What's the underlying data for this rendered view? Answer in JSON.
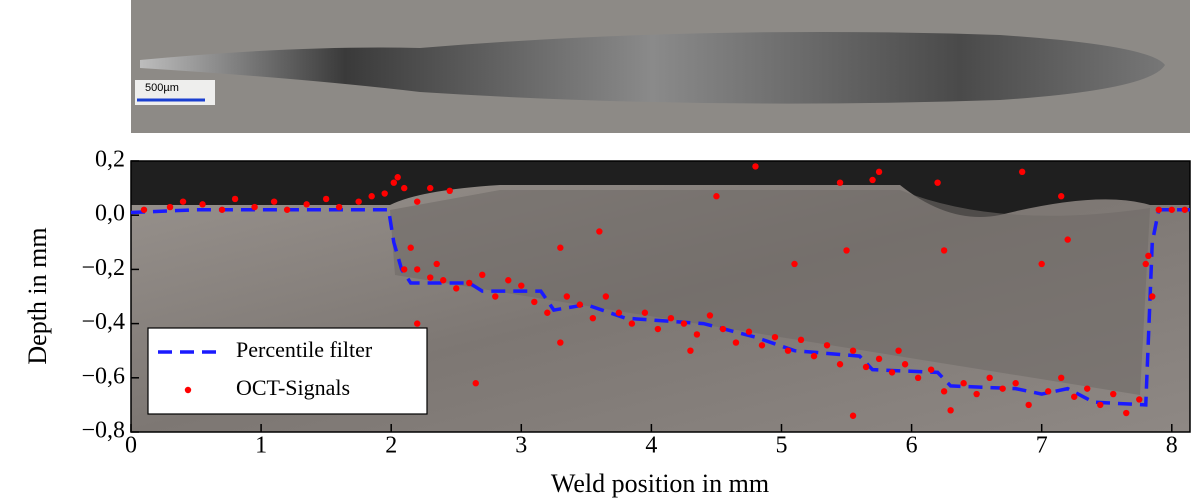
{
  "micrograph": {
    "scale_bar": "500µm"
  },
  "chart_data": {
    "type": "line",
    "xlabel": "Weld position in mm",
    "ylabel": "Depth in mm",
    "xlim": [
      0,
      8.14
    ],
    "ylim": [
      -0.8,
      0.2
    ],
    "xticks": [
      0,
      1,
      2,
      3,
      4,
      5,
      6,
      7,
      8
    ],
    "yticks": [
      {
        "value": 0.2,
        "label": "0,2"
      },
      {
        "value": 0,
        "label": "0,0"
      },
      {
        "value": -0.2,
        "label": "−0,2"
      },
      {
        "value": -0.4,
        "label": "−0,4"
      },
      {
        "value": -0.6,
        "label": "−0,6"
      },
      {
        "value": -0.8,
        "label": "−0,8"
      }
    ],
    "legend": "lower left",
    "series": [
      {
        "name": "Percentile filter",
        "type": "line",
        "color": "#1a1aff",
        "x": [
          0,
          0.5,
          1.98,
          2.02,
          2.08,
          2.15,
          2.6,
          2.7,
          3.15,
          3.25,
          3.5,
          3.8,
          4.4,
          4.8,
          5.1,
          5.6,
          5.7,
          6.2,
          6.3,
          6.8,
          7.0,
          7.2,
          7.4,
          7.8,
          7.85,
          7.9,
          8.14
        ],
        "y": [
          0.01,
          0.02,
          0.02,
          -0.1,
          -0.2,
          -0.25,
          -0.25,
          -0.28,
          -0.28,
          -0.35,
          -0.33,
          -0.38,
          -0.4,
          -0.45,
          -0.5,
          -0.52,
          -0.57,
          -0.58,
          -0.63,
          -0.64,
          -0.66,
          -0.64,
          -0.69,
          -0.7,
          -0.1,
          0.02,
          0.02
        ]
      },
      {
        "name": "OCT-Signals",
        "type": "scatter",
        "color": "#ff0000",
        "x": [
          0.1,
          0.3,
          0.4,
          0.55,
          0.7,
          0.8,
          0.95,
          1.1,
          1.2,
          1.35,
          1.5,
          1.6,
          1.75,
          1.85,
          1.95,
          2.02,
          2.05,
          2.1,
          2.2,
          2.15,
          2.2,
          2.3,
          2.4,
          2.1,
          2.3,
          2.45,
          2.2,
          2.35,
          2.65,
          3.3,
          3.6,
          4.5,
          4.8,
          5.5,
          5.45,
          5.75,
          5.7,
          6.2,
          6.25,
          6.85,
          7.0,
          7.15,
          7.2,
          5.1,
          2.5,
          2.6,
          2.7,
          2.8,
          2.9,
          3.0,
          3.1,
          3.2,
          3.3,
          3.35,
          3.45,
          3.55,
          3.65,
          3.75,
          3.85,
          3.95,
          4.05,
          4.15,
          4.25,
          4.35,
          4.45,
          4.55,
          4.65,
          4.75,
          4.85,
          4.95,
          5.05,
          5.15,
          5.25,
          5.35,
          5.45,
          5.55,
          5.65,
          5.75,
          5.85,
          5.95,
          6.05,
          6.15,
          6.25,
          6.3,
          6.4,
          6.5,
          6.6,
          6.7,
          6.8,
          6.9,
          7.05,
          7.15,
          7.25,
          7.35,
          7.45,
          7.55,
          7.65,
          7.75,
          7.8,
          7.82,
          7.85,
          7.9,
          8.0,
          8.1,
          5.55,
          5.9,
          4.3
        ],
        "y": [
          0.02,
          0.03,
          0.05,
          0.04,
          0.02,
          0.06,
          0.03,
          0.05,
          0.02,
          0.04,
          0.06,
          0.03,
          0.05,
          0.07,
          0.08,
          0.12,
          0.14,
          0.1,
          0.05,
          -0.12,
          -0.2,
          -0.23,
          -0.24,
          -0.2,
          0.1,
          0.09,
          -0.4,
          -0.18,
          -0.62,
          -0.12,
          -0.06,
          0.07,
          0.18,
          -0.13,
          0.12,
          0.16,
          0.13,
          0.12,
          -0.13,
          0.16,
          -0.18,
          0.07,
          -0.09,
          -0.18,
          -0.27,
          -0.25,
          -0.22,
          -0.3,
          -0.24,
          -0.26,
          -0.32,
          -0.36,
          -0.47,
          -0.3,
          -0.33,
          -0.38,
          -0.3,
          -0.36,
          -0.4,
          -0.36,
          -0.42,
          -0.38,
          -0.4,
          -0.44,
          -0.37,
          -0.42,
          -0.47,
          -0.43,
          -0.48,
          -0.45,
          -0.5,
          -0.46,
          -0.52,
          -0.48,
          -0.55,
          -0.5,
          -0.56,
          -0.53,
          -0.58,
          -0.55,
          -0.6,
          -0.57,
          -0.65,
          -0.72,
          -0.62,
          -0.66,
          -0.6,
          -0.64,
          -0.62,
          -0.7,
          -0.65,
          -0.6,
          -0.67,
          -0.64,
          -0.7,
          -0.66,
          -0.73,
          -0.68,
          -0.18,
          -0.15,
          -0.3,
          0.02,
          0.02,
          0.02,
          -0.74,
          -0.5,
          -0.5
        ]
      }
    ]
  }
}
